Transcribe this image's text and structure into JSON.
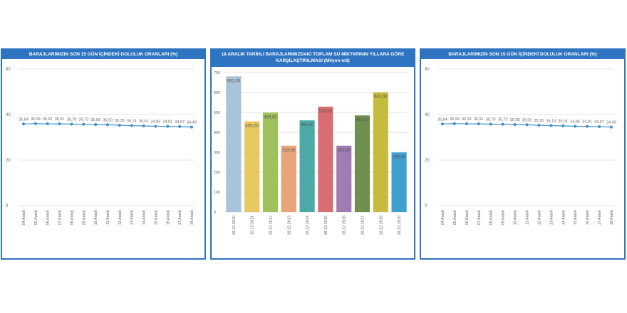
{
  "charts": {
    "left": {
      "title": "BARAJLARIMIZIN SON 15 GÜN İÇİNDEKİ DOLULUK ORANLARI (%)"
    },
    "middle": {
      "title": "18 ARALIK TARİHLİ BARAJLARIMIZDAKİ TOPLAM SU MİKTARININ YILLARA GÖRE KARŞILAŞTIRILMASI (Milyon m3)"
    },
    "right": {
      "title": "BARAJLARIMIZIN SON 15 GÜN İÇİNDEKİ DOLULUK ORANLARI (%)"
    }
  },
  "colors": {
    "header": "#2f74c0",
    "line": "#3d8fc8",
    "bars": [
      "#a9c4d8",
      "#e8c861",
      "#9ec15c",
      "#e8a57a",
      "#4baaa6",
      "#d86d72",
      "#a07cb2",
      "#6f8f4e",
      "#c4bb3f",
      "#3f9fce"
    ]
  },
  "chart_data": [
    {
      "type": "line",
      "title": "BARAJLARIMIZIN SON 15 GÜN İÇİNDEKİ DOLULUK ORANLARI (%)",
      "categories": [
        "04 Aralık",
        "05 Aralık",
        "06 Aralık",
        "07 Aralık",
        "08 Aralık",
        "09 Aralık",
        "10 Aralık",
        "11 Aralık",
        "12 Aralık",
        "13 Aralık",
        "14 Aralık",
        "15 Aralık",
        "16 Aralık",
        "17 Aralık",
        "18 Aralık"
      ],
      "values": [
        35.84,
        35.99,
        35.92,
        35.91,
        35.79,
        35.73,
        35.58,
        35.5,
        35.3,
        35.14,
        35.01,
        34.85,
        34.81,
        34.67,
        34.49
      ],
      "labels": [
        "35,84",
        "35,99",
        "35,92",
        "35,91",
        "35,79",
        "35,73",
        "35,58",
        "35,50",
        "35,30",
        "35,14",
        "35,01",
        "34,85",
        "34,81",
        "34,67",
        "34,49"
      ],
      "yticks": [
        "0",
        "20",
        "40",
        "60"
      ],
      "ylim": [
        0,
        60
      ],
      "xlabel": "",
      "ylabel": ""
    },
    {
      "type": "bar",
      "title": "18 ARALIK TARİHLİ BARAJLARIMIZDAKİ TOPLAM SU MİKTARININ YILLARA GÖRE KARŞILAŞTIRILMASI (Milyon m3)",
      "categories": [
        "18.12.2010",
        "18.12.2011",
        "18.12.2012",
        "18.12.2013",
        "18.12.2014",
        "18.12.2015",
        "18.12.2016",
        "18.12.2017",
        "18.12.2018",
        "18.12.2019"
      ],
      "values": [
        681.0,
        455.0,
        499.0,
        333.0,
        460.0,
        529.0,
        333.0,
        485.0,
        601.0,
        299.0
      ],
      "labels": [
        "681,00",
        "455,00",
        "499,00",
        "333,00",
        "460,00",
        "529,00",
        "333,00",
        "485,00",
        "601,00",
        "299,00"
      ],
      "yticks": [
        "0",
        "100",
        "200",
        "300",
        "400",
        "500",
        "600",
        "700"
      ],
      "ylim": [
        0,
        700
      ],
      "xlabel": "",
      "ylabel": ""
    },
    {
      "type": "line",
      "title": "BARAJLARIMIZIN SON 15 GÜN İÇİNDEKİ DOLULUK ORANLARI (%)",
      "categories": [
        "04 Aralık",
        "05 Aralık",
        "06 Aralık",
        "07 Aralık",
        "08 Aralık",
        "09 Aralık",
        "10 Aralık",
        "11 Aralık",
        "12 Aralık",
        "13 Aralık",
        "14 Aralık",
        "15 Aralık",
        "16 Aralık",
        "17 Aralık",
        "18 Aralık"
      ],
      "values": [
        35.84,
        35.99,
        35.92,
        35.91,
        35.79,
        35.73,
        35.58,
        35.5,
        35.3,
        35.14,
        35.01,
        34.85,
        34.81,
        34.67,
        34.49
      ],
      "labels": [
        "35,84",
        "35,99",
        "35,92",
        "35,91",
        "35,79",
        "35,73",
        "35,58",
        "35,50",
        "35,30",
        "35,14",
        "35,01",
        "34,85",
        "34,81",
        "34,67",
        "34,49"
      ],
      "yticks": [
        "0",
        "20",
        "40",
        "60"
      ],
      "ylim": [
        0,
        60
      ],
      "xlabel": "",
      "ylabel": ""
    }
  ]
}
